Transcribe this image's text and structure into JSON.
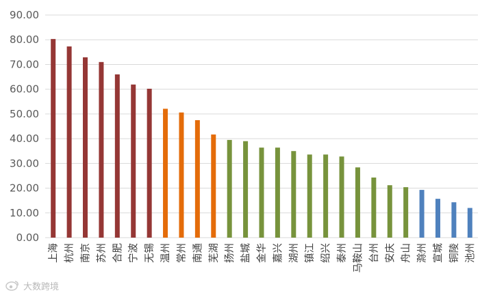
{
  "chart_data": {
    "type": "bar",
    "title": "",
    "xlabel": "",
    "ylabel": "",
    "ylim": [
      0,
      90
    ],
    "yticks": [
      "0.00",
      "10.00",
      "20.00",
      "30.00",
      "40.00",
      "50.00",
      "60.00",
      "70.00",
      "80.00",
      "90.00"
    ],
    "grid": true,
    "legend": "none",
    "categories": [
      "上海",
      "杭州",
      "南京",
      "苏州",
      "合肥",
      "宁波",
      "无锡",
      "温州",
      "常州",
      "南通",
      "芜湖",
      "扬州",
      "盐城",
      "金华",
      "嘉兴",
      "湖州",
      "镇江",
      "绍兴",
      "泰州",
      "马鞍山",
      "台州",
      "安庆",
      "舟山",
      "滁州",
      "宣城",
      "铜陵",
      "池州"
    ],
    "values": [
      80.3,
      77.3,
      72.9,
      71.0,
      66.0,
      61.9,
      60.2,
      52.1,
      50.6,
      47.5,
      41.7,
      39.5,
      39.0,
      36.4,
      36.4,
      35.0,
      33.6,
      33.6,
      32.8,
      28.4,
      24.3,
      21.2,
      20.4,
      19.3,
      15.7,
      14.3,
      12.0
    ],
    "groups": [
      {
        "color": "#953735",
        "count": 7
      },
      {
        "color": "#e46c0a",
        "count": 4
      },
      {
        "color": "#77933c",
        "count": 12
      },
      {
        "color": "#4f81bd",
        "count": 4
      }
    ]
  },
  "watermark": {
    "icon": "weibo-icon",
    "text": "大数跨境"
  }
}
